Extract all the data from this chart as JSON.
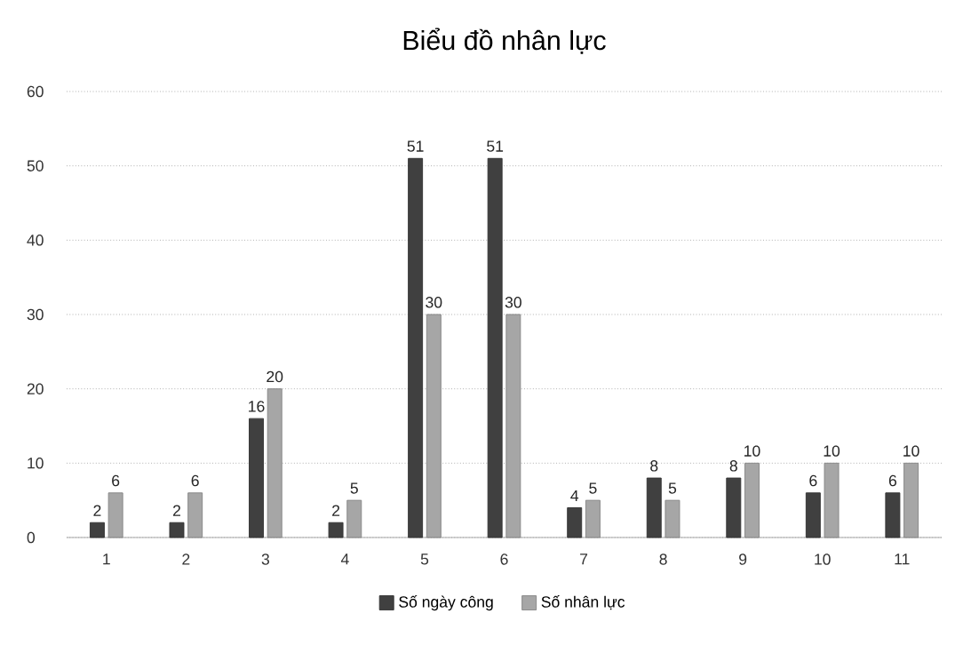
{
  "chart_data": {
    "type": "bar",
    "title": "Biểu đồ nhân lực",
    "categories": [
      "1",
      "2",
      "3",
      "4",
      "5",
      "6",
      "7",
      "8",
      "9",
      "10",
      "11"
    ],
    "series": [
      {
        "name": "Số ngày công",
        "color": "#404040",
        "values": [
          2,
          2,
          16,
          2,
          51,
          51,
          4,
          8,
          8,
          6,
          6
        ]
      },
      {
        "name": "Số nhân lực",
        "color": "#a6a6a6",
        "values": [
          6,
          6,
          20,
          5,
          30,
          30,
          5,
          5,
          10,
          10,
          10
        ]
      }
    ],
    "ylim": [
      0,
      60
    ],
    "yticks": [
      0,
      10,
      20,
      30,
      40,
      50,
      60
    ],
    "grid": "y",
    "legend": "bottom",
    "data_labels": true
  }
}
